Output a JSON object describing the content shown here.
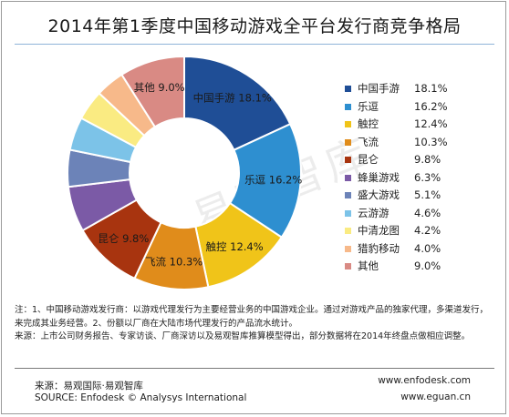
{
  "chart_data": {
    "type": "pie",
    "title": "2014年第1季度中国移动游戏全平台发行商竞争格局",
    "slices": [
      {
        "label": "中国手游",
        "value": 18.1,
        "display": "18.1%",
        "color": "#1f4e96"
      },
      {
        "label": "乐逗",
        "value": 16.2,
        "display": "16.2%",
        "color": "#2e8fd0"
      },
      {
        "label": "触控",
        "value": 12.4,
        "display": "12.4%",
        "color": "#f0c419"
      },
      {
        "label": "飞流",
        "value": 10.3,
        "display": "10.3%",
        "color": "#e08c1b"
      },
      {
        "label": "昆仑",
        "value": 9.8,
        "display": "9.8%",
        "color": "#a8340f"
      },
      {
        "label": "蜂巢游戏",
        "value": 6.3,
        "display": "6.3%",
        "color": "#7b5aa6"
      },
      {
        "label": "盛大游戏",
        "value": 5.1,
        "display": "5.1%",
        "color": "#6c83b8"
      },
      {
        "label": "云游游",
        "value": 4.6,
        "display": "4.6%",
        "color": "#7cc3e8"
      },
      {
        "label": "中清龙图",
        "value": 4.2,
        "display": "4.2%",
        "color": "#faeb82"
      },
      {
        "label": "猎豹移动",
        "value": 4.0,
        "display": "4.0%",
        "color": "#f7b98a"
      },
      {
        "label": "其他",
        "value": 9.0,
        "display": "9.0%",
        "color": "#d98a84"
      }
    ],
    "slice_labels_shown": [
      "中国手游",
      "乐逗",
      "触控",
      "飞流",
      "昆仑",
      "其他"
    ],
    "legend_position": "right",
    "chart_kind": "donut"
  },
  "notes": {
    "line1": "注：1、中国移动游戏发行商：以游戏代理发行为主要经营业务的中国游戏企业。通过对游戏产品的独家代理，多渠道发行，来完成其业务经营。2、份额以厂商在大陆市场代理发行的产品流水统计。",
    "line2": "来源：上市公司财务报告、专家访谈、厂商深访以及易观智库推算模型得出，部分数据将在2014年终盘点做相应调整。"
  },
  "footer": {
    "source_cn": "来源：易观国际·易观智库",
    "source_en": "SOURCE: Enfodesk © Analysys International",
    "url1": "www.enfodesk.com",
    "url2": "www.eguan.cn"
  },
  "watermark": "易观智库"
}
